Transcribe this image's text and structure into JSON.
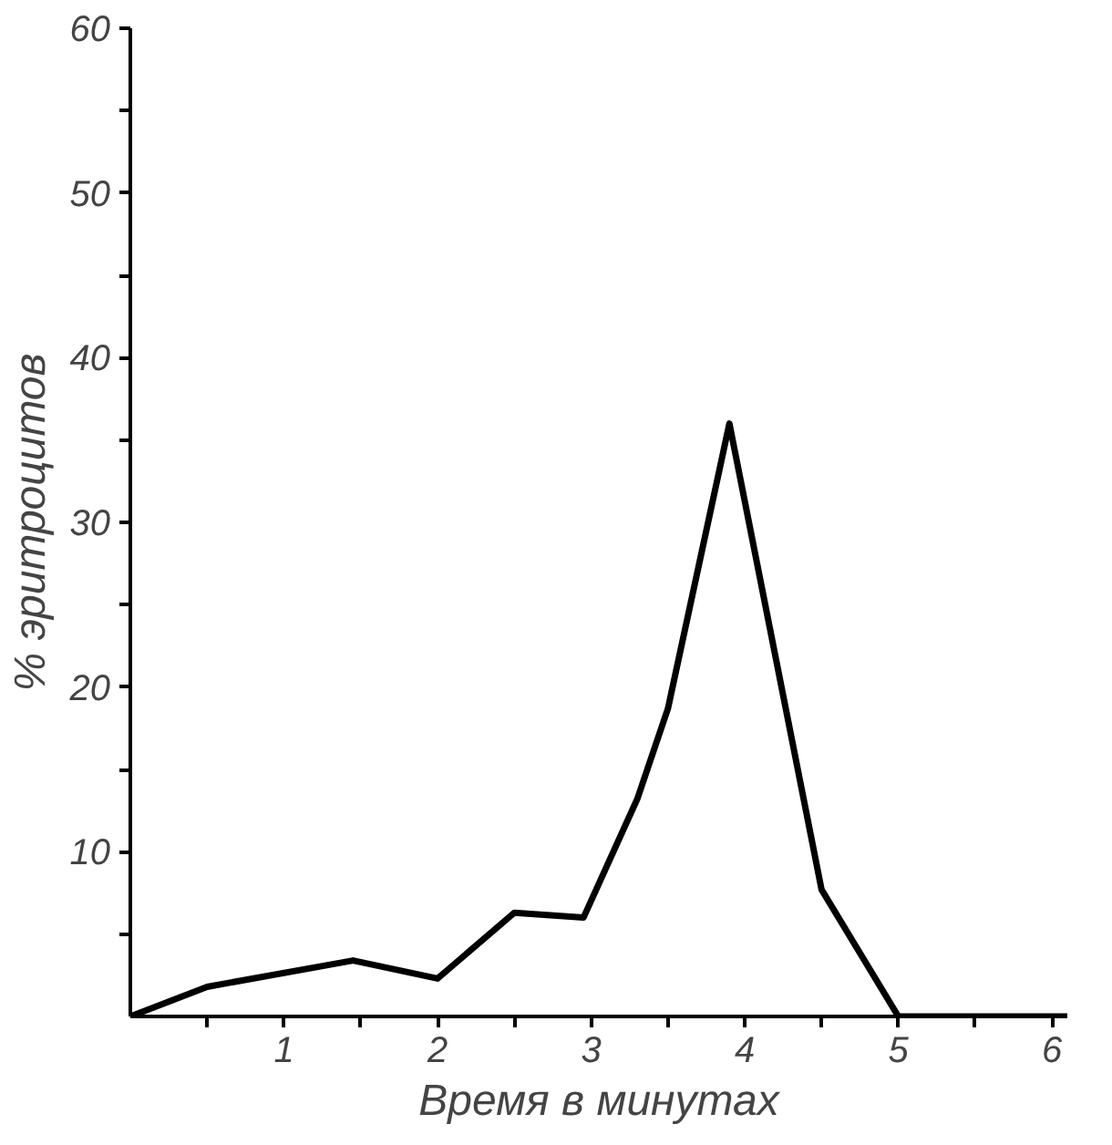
{
  "chart_data": {
    "type": "line",
    "xlabel": "Время в минутах",
    "ylabel": "% эритроцитов",
    "x": [
      0,
      0.5,
      1.45,
      2,
      2.5,
      2.95,
      3.3,
      3.5,
      3.9,
      4.5,
      5,
      6.1
    ],
    "series": [
      {
        "color": "#000000",
        "values": [
          0,
          1.8,
          3.4,
          2.3,
          6.3,
          6.0,
          13.2,
          18.7,
          36,
          7.7,
          0,
          0
        ]
      }
    ],
    "xlim": [
      0,
      6.1
    ],
    "ylim": [
      0,
      60
    ],
    "xticks": [
      {
        "value": 0.5,
        "label": null
      },
      1,
      {
        "value": 1.5,
        "label": null
      },
      2,
      {
        "value": 2.5,
        "label": null
      },
      3,
      {
        "value": 3.5,
        "label": null
      },
      4,
      {
        "value": 4.5,
        "label": null
      },
      5,
      {
        "value": 5.5,
        "label": null
      },
      6
    ],
    "yticks": [
      {
        "value": 5,
        "label": null
      },
      10,
      {
        "value": 15,
        "label": null
      },
      20,
      {
        "value": 25,
        "label": null
      },
      30,
      {
        "value": 35,
        "label": null
      },
      40,
      {
        "value": 45,
        "label": null
      },
      50,
      {
        "value": 55,
        "label": null
      },
      60
    ],
    "grid": false,
    "marker": "none",
    "line_style": "solid"
  }
}
